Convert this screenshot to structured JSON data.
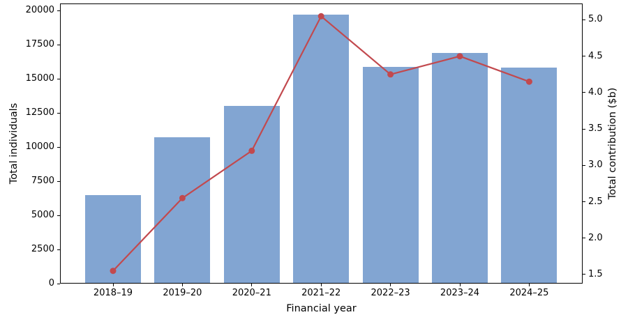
{
  "chart_data": {
    "type": "combo",
    "subtypes": [
      "bar",
      "line"
    ],
    "title": "",
    "xlabel": "Financial year",
    "ylabel_left": "Total individuals",
    "ylabel_right": "Total contribution ($b)",
    "categories": [
      "2018–19",
      "2019–20",
      "2020–21",
      "2021–22",
      "2022–23",
      "2023–24",
      "2024–25"
    ],
    "series": [
      {
        "name": "Total individuals",
        "type": "bar",
        "axis": "left",
        "color": "#82a5d2",
        "values": [
          6500,
          10700,
          13000,
          19700,
          15900,
          16900,
          15800
        ]
      },
      {
        "name": "Total contribution ($b)",
        "type": "line",
        "axis": "right",
        "color": "#c2494e",
        "marker": "circle",
        "values": [
          1.55,
          2.55,
          3.2,
          5.05,
          4.25,
          4.5,
          4.15
        ]
      }
    ],
    "left_ticks": [
      0,
      2500,
      5000,
      7500,
      10000,
      12500,
      15000,
      17500,
      20000
    ],
    "right_ticks": [
      1.5,
      2.0,
      2.5,
      3.0,
      3.5,
      4.0,
      4.5,
      5.0
    ],
    "ylim_left": [
      0,
      20520
    ],
    "ylim_right": [
      1.375,
      5.225
    ],
    "grid": false,
    "legend": "none",
    "background": "#ffffff",
    "spine_color": "#000000"
  }
}
